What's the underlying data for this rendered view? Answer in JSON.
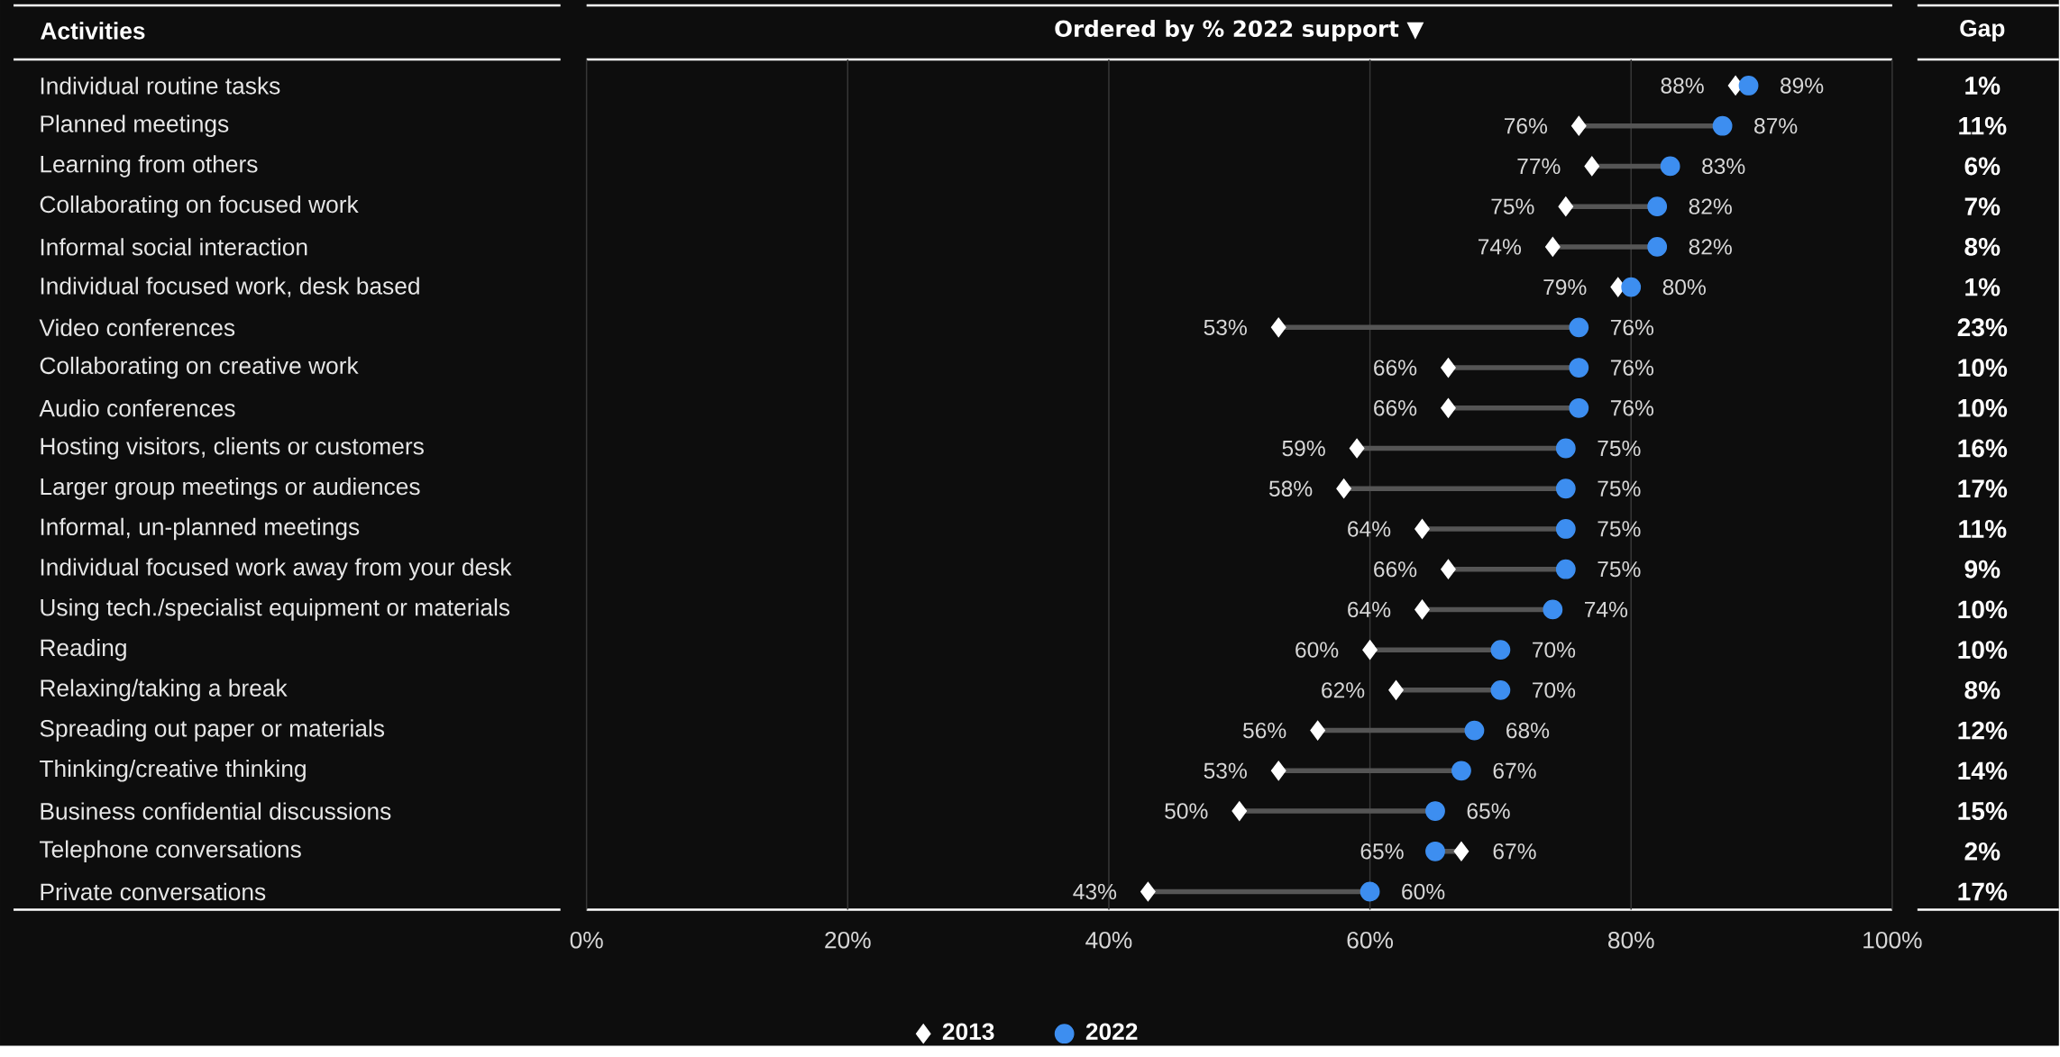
{
  "chart_data": {
    "type": "scatter",
    "orientation": "horizontal",
    "title": "Ordered by % 2022 support ▼",
    "categories": [
      "Individual routine tasks",
      "Planned meetings",
      "Learning from others",
      "Collaborating on focused work",
      "Informal social interaction",
      "Individual focused work, desk based",
      "Video conferences",
      "Collaborating on creative work",
      "Audio conferences",
      "Hosting visitors, clients or customers",
      "Larger group meetings or audiences",
      "Informal, un-planned meetings",
      "Individual focused work away from your desk",
      "Using tech./specialist equipment or materials",
      "Reading",
      "Relaxing/taking a break",
      "Spreading out paper or materials",
      "Thinking/creative thinking",
      "Business confidential discussions",
      "Telephone conversations",
      "Private conversations"
    ],
    "series": [
      {
        "name": "2013",
        "color": "#ffffff",
        "marker": "diamond",
        "values": [
          88,
          76,
          77,
          75,
          74,
          79,
          53,
          66,
          66,
          59,
          58,
          64,
          66,
          64,
          60,
          62,
          56,
          53,
          50,
          67,
          43
        ],
        "value_labels": [
          "88%",
          "76%",
          "77%",
          "75%",
          "74%",
          "79%",
          "53%",
          "66%",
          "66%",
          "59%",
          "58%",
          "64%",
          "66%",
          "64%",
          "60%",
          "62%",
          "56%",
          "53%",
          "50%",
          "67%",
          "43%"
        ]
      },
      {
        "name": "2022",
        "color": "#3d8ef0",
        "marker": "circle",
        "values": [
          89,
          87,
          83,
          82,
          82,
          80,
          76,
          76,
          76,
          75,
          75,
          75,
          75,
          74,
          70,
          70,
          68,
          67,
          65,
          65,
          60
        ],
        "value_labels": [
          "89%",
          "87%",
          "83%",
          "82%",
          "82%",
          "80%",
          "76%",
          "76%",
          "76%",
          "75%",
          "75%",
          "75%",
          "75%",
          "74%",
          "70%",
          "70%",
          "68%",
          "67%",
          "65%",
          "65%",
          "60%"
        ]
      }
    ],
    "xlim": [
      0,
      100
    ],
    "xticks": [
      {
        "value": 0,
        "label": "0%"
      },
      {
        "value": 20,
        "label": "20%"
      },
      {
        "value": 40,
        "label": "40%"
      },
      {
        "value": 60,
        "label": "60%"
      },
      {
        "value": 80,
        "label": "80%"
      },
      {
        "value": 100,
        "label": "100%"
      }
    ],
    "grid": "x",
    "legend": "bottom",
    "annotations": [
      "Activities",
      "Gap",
      "1%",
      "11%",
      "6%",
      "7%",
      "8%",
      "1%",
      "23%",
      "10%",
      "10%",
      "16%",
      "17%",
      "11%",
      "9%",
      "10%",
      "10%",
      "8%",
      "12%",
      "14%",
      "15%",
      "2%",
      "17%"
    ]
  }
}
